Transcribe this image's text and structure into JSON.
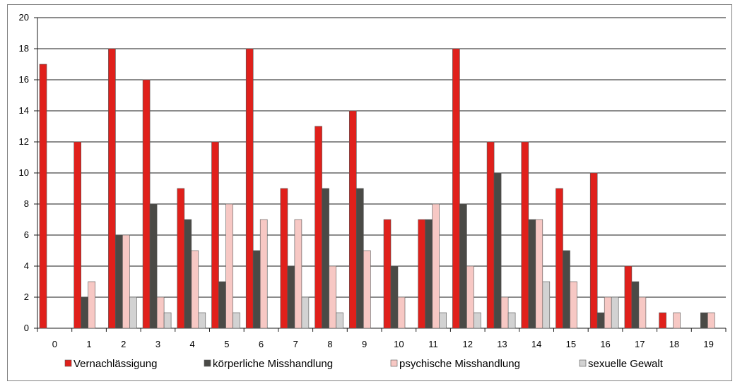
{
  "chart_data": {
    "type": "bar",
    "title": "",
    "xlabel": "",
    "ylabel": "",
    "ylim": [
      0,
      20
    ],
    "yticks": [
      0,
      2,
      4,
      6,
      8,
      10,
      12,
      14,
      16,
      18,
      20
    ],
    "grid": true,
    "legend_position": "bottom",
    "categories": [
      "0",
      "1",
      "2",
      "3",
      "4",
      "5",
      "6",
      "7",
      "8",
      "9",
      "10",
      "11",
      "12",
      "13",
      "14",
      "15",
      "16",
      "17",
      "18",
      "19"
    ],
    "series": [
      {
        "name": "Vernachlässigung",
        "color": "#e0201b",
        "values": [
          17,
          12,
          18,
          16,
          9,
          12,
          18,
          9,
          13,
          14,
          7,
          7,
          18,
          12,
          12,
          9,
          10,
          4,
          1,
          0
        ]
      },
      {
        "name": "körperliche Misshandlung",
        "color": "#4a4a46",
        "values": [
          0,
          2,
          6,
          8,
          7,
          3,
          5,
          4,
          9,
          9,
          4,
          7,
          8,
          10,
          7,
          5,
          1,
          3,
          0,
          1
        ]
      },
      {
        "name": "psychische Misshandlung",
        "color": "#f7c8c4",
        "values": [
          0,
          3,
          6,
          2,
          5,
          8,
          7,
          7,
          4,
          5,
          2,
          8,
          4,
          2,
          7,
          3,
          2,
          2,
          1,
          1
        ]
      },
      {
        "name": "sexuelle Gewalt",
        "color": "#d2d2d2",
        "values": [
          0,
          0,
          2,
          1,
          1,
          1,
          0,
          2,
          1,
          0,
          0,
          1,
          1,
          1,
          3,
          0,
          2,
          0,
          0,
          0
        ]
      }
    ]
  }
}
